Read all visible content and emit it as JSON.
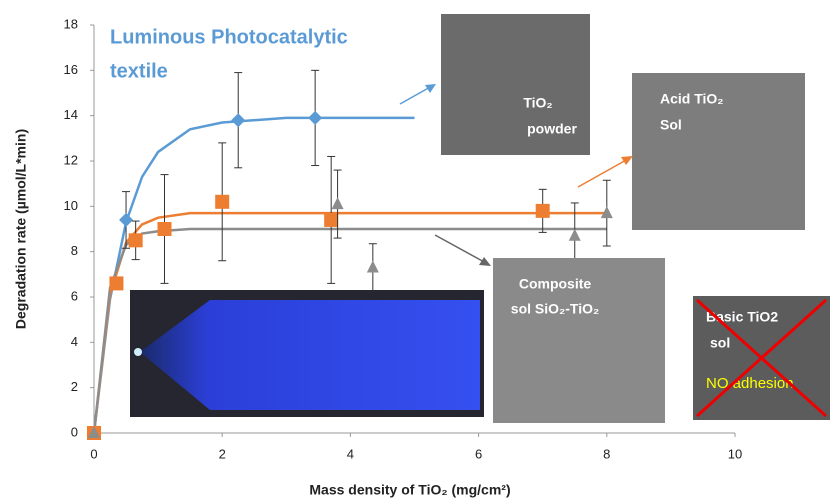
{
  "chart_data": {
    "type": "scatter",
    "title": [
      "Luminous Photocatalytic",
      "textile"
    ],
    "x_label": "Mass density of TiO₂ (mg/cm²)",
    "y_label": "Degradation rate (µmol/L*min)",
    "xlim": [
      0,
      10
    ],
    "xticks": [
      0,
      2,
      4,
      6,
      8,
      10
    ],
    "ylim": [
      0,
      18
    ],
    "yticks": [
      0,
      2,
      4,
      6,
      8,
      10,
      12,
      14,
      16,
      18
    ],
    "grid": false,
    "series": [
      {
        "color": "#5b9bd5",
        "marker": "diamond",
        "x": [
          0,
          0.5,
          2.25,
          3.45
        ],
        "values": [
          0,
          9.4,
          13.8,
          13.9
        ],
        "errors": [
          null,
          1.25,
          2.1,
          2.1
        ],
        "fit_x": [
          0,
          0.25,
          0.5,
          0.75,
          1,
          1.5,
          2,
          3,
          4,
          5
        ],
        "fit_values": [
          0,
          5.9,
          9.3,
          11.3,
          12.4,
          13.4,
          13.7,
          13.9,
          13.9,
          13.9
        ]
      },
      {
        "color": "#ed7d31",
        "marker": "square",
        "x": [
          0,
          0.35,
          0.65,
          1.1,
          2.0,
          3.7,
          7.0
        ],
        "values": [
          0,
          6.6,
          8.5,
          9.0,
          10.2,
          9.4,
          9.8
        ],
        "errors": [
          null,
          null,
          0.85,
          2.4,
          2.6,
          2.8,
          0.95
        ],
        "fit_x": [
          0,
          0.25,
          0.5,
          0.75,
          1,
          1.5,
          2,
          4,
          6,
          8
        ],
        "fit_values": [
          0,
          6.1,
          8.4,
          9.2,
          9.5,
          9.7,
          9.7,
          9.7,
          9.7,
          9.7
        ]
      },
      {
        "color": "#8c8c8c",
        "marker": "triangle",
        "x": [
          0,
          3.8,
          4.35,
          7.5,
          8.0
        ],
        "values": [
          0,
          10.1,
          7.3,
          8.7,
          9.7
        ],
        "errors": [
          null,
          1.5,
          1.05,
          1.45,
          1.45
        ],
        "fit_x": [
          0,
          0.25,
          0.5,
          0.75,
          1,
          1.5,
          2,
          4,
          6,
          8
        ],
        "fit_values": [
          0,
          6.4,
          8.3,
          8.8,
          8.9,
          9.0,
          9.0,
          9.0,
          9.0,
          9.0
        ]
      }
    ],
    "insets": [
      {
        "label": [
          "TiO₂",
          "powder"
        ]
      },
      {
        "label": [
          "Acid TiO₂",
          "Sol"
        ]
      },
      {
        "label": [
          "Composite",
          "sol SiO₂-TiO₂"
        ]
      },
      {
        "label": [
          "Basic TiO2",
          "sol"
        ],
        "note": "NO adhesion"
      }
    ]
  }
}
